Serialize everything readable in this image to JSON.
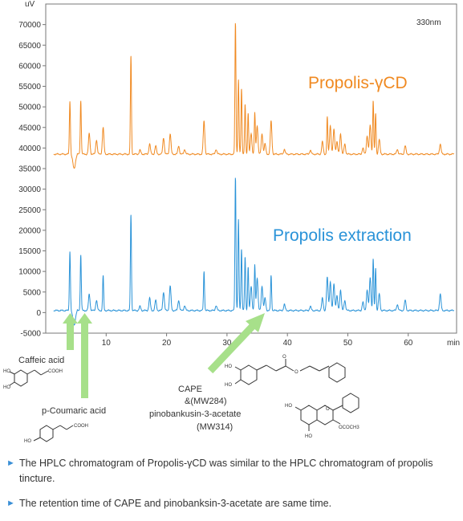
{
  "chart_data": {
    "type": "line",
    "wavelength": "330nm",
    "y_unit": "uV",
    "x_unit": "min",
    "xlim": [
      0,
      68
    ],
    "ylim": [
      -5000,
      75000
    ],
    "x_ticks": [
      10,
      20,
      30,
      40,
      50,
      60
    ],
    "y_ticks": [
      -5000,
      0,
      5000,
      10000,
      15000,
      20000,
      25000,
      30000,
      35000,
      40000,
      45000,
      50000,
      55000,
      60000,
      65000,
      70000
    ],
    "series": [
      {
        "name": "Propolis-γCD",
        "color": "#f08a22",
        "baseline": 38500,
        "peaks": [
          [
            4.0,
            13000
          ],
          [
            5.8,
            13000
          ],
          [
            7.2,
            5000
          ],
          [
            8.4,
            3500
          ],
          [
            9.5,
            6500
          ],
          [
            14.1,
            24000
          ],
          [
            15.6,
            1000
          ],
          [
            17.2,
            2500
          ],
          [
            18.2,
            2000
          ],
          [
            19.5,
            4000
          ],
          [
            20.6,
            5000
          ],
          [
            22.0,
            2000
          ],
          [
            23.0,
            1200
          ],
          [
            26.2,
            8000
          ],
          [
            28.2,
            1200
          ],
          [
            31.4,
            32000
          ],
          [
            31.9,
            18000
          ],
          [
            32.4,
            16000
          ],
          [
            33.0,
            12000
          ],
          [
            33.5,
            10000
          ],
          [
            34.0,
            5000
          ],
          [
            34.6,
            10000
          ],
          [
            35.0,
            7000
          ],
          [
            35.8,
            5000
          ],
          [
            36.3,
            2500
          ],
          [
            37.3,
            8000
          ],
          [
            39.5,
            1200
          ],
          [
            43.8,
            1000
          ],
          [
            45.8,
            3000
          ],
          [
            46.6,
            9000
          ],
          [
            47.1,
            7000
          ],
          [
            47.7,
            6000
          ],
          [
            48.2,
            3000
          ],
          [
            48.8,
            5000
          ],
          [
            49.5,
            2500
          ],
          [
            52.5,
            1500
          ],
          [
            53.2,
            4500
          ],
          [
            53.7,
            7000
          ],
          [
            54.2,
            13000
          ],
          [
            54.6,
            10000
          ],
          [
            55.2,
            3500
          ],
          [
            58.2,
            1200
          ],
          [
            59.5,
            2000
          ],
          [
            65.3,
            2500
          ]
        ]
      },
      {
        "name": "Propolis extraction",
        "color": "#2a93d8",
        "baseline": 500,
        "peaks": [
          [
            4.0,
            14500
          ],
          [
            5.8,
            13500
          ],
          [
            7.2,
            4000
          ],
          [
            8.4,
            2500
          ],
          [
            9.5,
            8500
          ],
          [
            14.1,
            23500
          ],
          [
            15.6,
            1000
          ],
          [
            17.2,
            3000
          ],
          [
            18.2,
            2500
          ],
          [
            19.5,
            4500
          ],
          [
            20.6,
            6000
          ],
          [
            22.0,
            2500
          ],
          [
            23.0,
            1200
          ],
          [
            26.2,
            9500
          ],
          [
            28.2,
            1200
          ],
          [
            31.4,
            32500
          ],
          [
            31.9,
            22000
          ],
          [
            32.4,
            15000
          ],
          [
            33.0,
            13000
          ],
          [
            33.5,
            10500
          ],
          [
            34.0,
            6000
          ],
          [
            34.6,
            11000
          ],
          [
            35.0,
            8000
          ],
          [
            35.8,
            6000
          ],
          [
            36.3,
            3000
          ],
          [
            37.3,
            8500
          ],
          [
            39.5,
            1500
          ],
          [
            43.8,
            1000
          ],
          [
            45.8,
            3000
          ],
          [
            46.6,
            8000
          ],
          [
            47.1,
            7000
          ],
          [
            47.7,
            6500
          ],
          [
            48.2,
            3500
          ],
          [
            48.8,
            5000
          ],
          [
            49.5,
            2500
          ],
          [
            52.5,
            2000
          ],
          [
            53.2,
            5000
          ],
          [
            53.7,
            8000
          ],
          [
            54.2,
            12500
          ],
          [
            54.6,
            10500
          ],
          [
            55.2,
            4000
          ],
          [
            58.2,
            1500
          ],
          [
            59.5,
            2500
          ],
          [
            65.3,
            4000
          ]
        ]
      }
    ]
  },
  "labels": {
    "wavelength": "330nm",
    "y_unit": "uV",
    "x_unit": "min",
    "series_top": "Propolis-γCD",
    "series_bottom": "Propolis extraction"
  },
  "structures": {
    "caffeic": "Caffeic acid",
    "coumaric": "p-Coumaric acid",
    "cape_line1": "CAPE",
    "cape_line2": "&(MW284)",
    "cape_line3": "pinobankusin-3-acetate",
    "cape_line4": "(MW314)"
  },
  "notes": [
    "The HPLC chromatogram of Propolis-γCD was similar to the HPLC chromatogram of propolis tincture.",
    "The retention time of CAPE and pinobanksin-3-acetate are same time."
  ],
  "colors": {
    "orange": "#f08a22",
    "blue": "#2a93d8",
    "arrow": "#a7e08a",
    "bullet": "#3a8fd6"
  }
}
